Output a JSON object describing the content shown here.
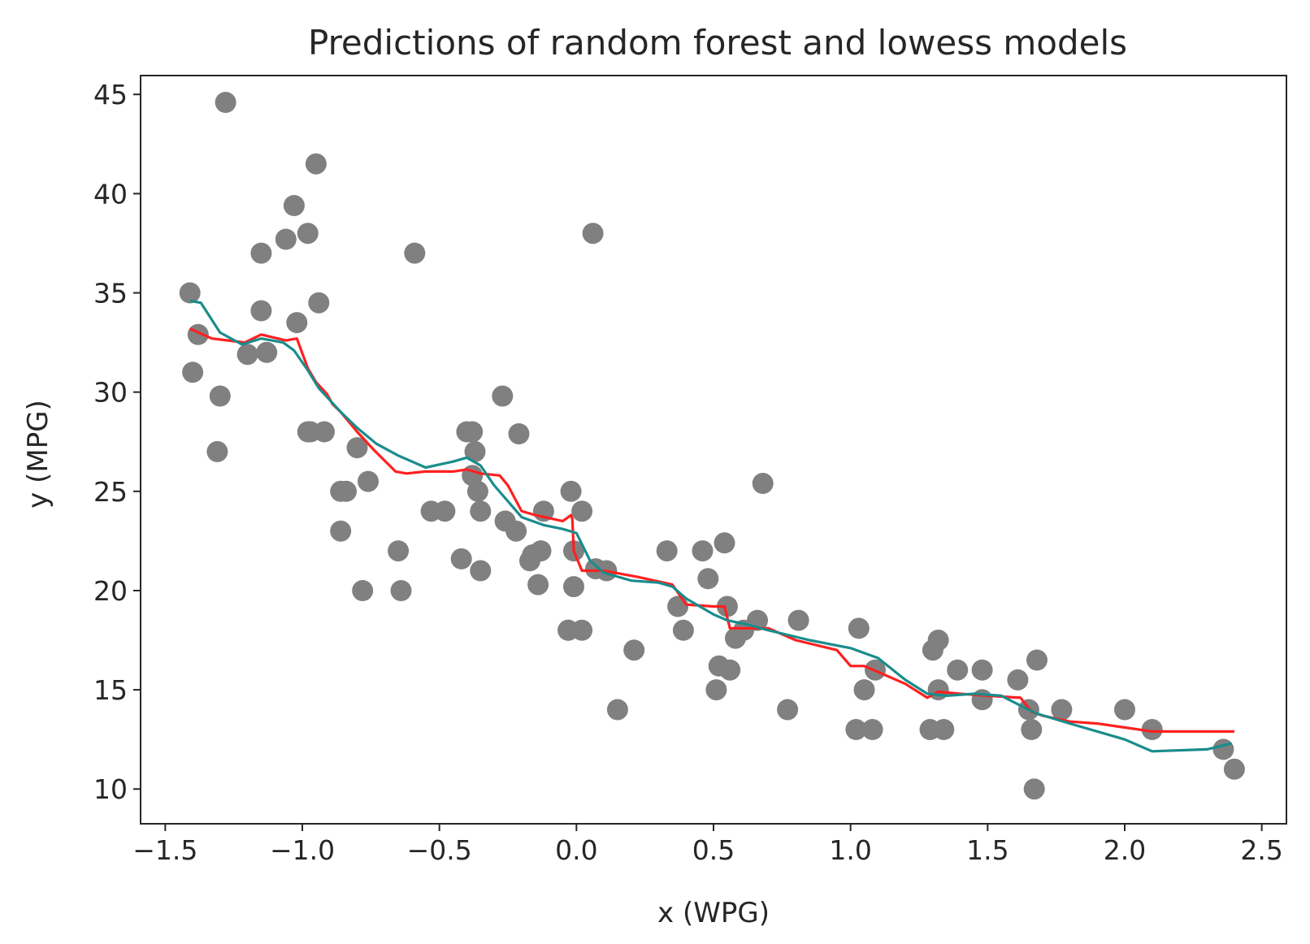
{
  "chart_data": {
    "type": "scatter",
    "title": "Predictions of random forest and lowess models",
    "xlabel": "x (WPG)",
    "ylabel": "y (MPG)",
    "xlim": [
      -1.59,
      2.59
    ],
    "ylim": [
      8.25,
      45.95
    ],
    "xticks": [
      -1.5,
      -1.0,
      -0.5,
      0.0,
      0.5,
      1.0,
      1.5,
      2.0,
      2.5
    ],
    "xtick_labels": [
      "−1.5",
      "−1.0",
      "−0.5",
      "0.0",
      "0.5",
      "1.0",
      "1.5",
      "2.0",
      "2.5"
    ],
    "yticks": [
      10,
      15,
      20,
      25,
      30,
      35,
      40,
      45
    ],
    "ytick_labels": [
      "10",
      "15",
      "20",
      "25",
      "30",
      "35",
      "40",
      "45"
    ],
    "grid": false,
    "colors": {
      "points": "#808080",
      "random_forest": "#ff2020",
      "lowess": "#1a8c8c",
      "frame": "#262626"
    },
    "scatter": {
      "x": [
        -1.41,
        -1.38,
        -1.4,
        -1.3,
        -1.31,
        -1.28,
        -1.2,
        -1.15,
        -1.15,
        -1.13,
        -1.06,
        -1.03,
        -1.02,
        -0.98,
        -0.98,
        -0.95,
        -0.94,
        -0.97,
        -0.92,
        -0.86,
        -0.84,
        -0.86,
        -0.78,
        -0.76,
        -0.8,
        -0.65,
        -0.64,
        -0.59,
        -0.53,
        -0.48,
        -0.4,
        -0.38,
        -0.37,
        -0.38,
        -0.35,
        -0.35,
        -0.42,
        -0.36,
        -0.27,
        -0.26,
        -0.22,
        -0.21,
        -0.17,
        -0.16,
        -0.13,
        -0.14,
        -0.12,
        -0.03,
        -0.01,
        -0.02,
        -0.01,
        0.02,
        -0.03,
        0.02,
        0.06,
        0.07,
        0.11,
        0.15,
        0.21,
        0.33,
        0.37,
        0.39,
        0.46,
        0.48,
        0.51,
        0.52,
        0.54,
        0.55,
        0.56,
        0.58,
        0.61,
        0.66,
        0.68,
        0.77,
        0.81,
        1.02,
        1.03,
        1.05,
        1.08,
        1.09,
        1.29,
        1.3,
        1.32,
        1.32,
        1.34,
        1.39,
        1.48,
        1.48,
        1.61,
        1.65,
        1.66,
        1.67,
        1.68,
        1.77,
        2.0,
        2.1,
        2.36,
        2.4
      ],
      "y": [
        35.0,
        32.9,
        31.0,
        29.8,
        27.0,
        44.6,
        31.9,
        37.0,
        34.1,
        32.0,
        37.7,
        39.4,
        33.5,
        38.0,
        28.0,
        41.5,
        34.5,
        28.0,
        28.0,
        25.0,
        25.0,
        23.0,
        20.0,
        25.5,
        27.2,
        22.0,
        20.0,
        37.0,
        24.0,
        24.0,
        28.0,
        28.0,
        27.0,
        25.8,
        24.0,
        21.0,
        21.6,
        25.0,
        29.8,
        23.5,
        23.0,
        27.9,
        21.5,
        21.8,
        22.0,
        20.3,
        24.0,
        18.0,
        22.0,
        25.0,
        20.2,
        18.0,
        18.0,
        24.0,
        38.0,
        21.1,
        21.0,
        14.0,
        17.0,
        22.0,
        19.2,
        18.0,
        22.0,
        20.6,
        15.0,
        16.2,
        22.4,
        19.2,
        16.0,
        17.6,
        18.0,
        18.5,
        25.4,
        14.0,
        18.5,
        13.0,
        18.1,
        15.0,
        13.0,
        16.0,
        13.0,
        17.0,
        15.0,
        17.5,
        13.0,
        16.0,
        16.0,
        14.5,
        15.5,
        14.0,
        13.0,
        10.0,
        16.5,
        14.0,
        14.0,
        13.0,
        12.0,
        11.0
      ]
    },
    "series": [
      {
        "x": [
          -1.41,
          -1.33,
          -1.27,
          -1.21,
          -1.15,
          -1.06,
          -1.02,
          -0.98,
          -0.95,
          -0.91,
          -0.89,
          -0.86,
          -0.8,
          -0.74,
          -0.66,
          -0.62,
          -0.55,
          -0.45,
          -0.4,
          -0.35,
          -0.28,
          -0.25,
          -0.2,
          -0.15,
          -0.05,
          -0.02,
          -0.015,
          -0.01,
          0.02,
          0.1,
          0.22,
          0.35,
          0.4,
          0.5,
          0.54,
          0.56,
          0.7,
          0.8,
          0.95,
          1.0,
          1.05,
          1.1,
          1.2,
          1.28,
          1.32,
          1.4,
          1.5,
          1.62,
          1.66,
          1.7,
          1.8,
          1.9,
          2.0,
          2.1,
          2.4
        ],
        "y": [
          33.2,
          32.7,
          32.6,
          32.5,
          32.9,
          32.6,
          32.7,
          31.2,
          30.5,
          29.9,
          29.4,
          29.0,
          28.0,
          27.1,
          26.0,
          25.9,
          26.0,
          26.0,
          26.1,
          25.9,
          25.8,
          25.3,
          24.0,
          23.8,
          23.5,
          23.8,
          23.6,
          22.0,
          21.0,
          21.0,
          20.7,
          20.3,
          19.3,
          19.2,
          19.2,
          18.1,
          18.1,
          17.5,
          17.0,
          16.2,
          16.2,
          15.9,
          15.3,
          14.6,
          14.9,
          14.8,
          14.7,
          14.6,
          13.9,
          13.7,
          13.4,
          13.3,
          13.1,
          12.9,
          12.9
        ]
      },
      {
        "x": [
          -1.41,
          -1.37,
          -1.3,
          -1.22,
          -1.15,
          -1.07,
          -1.03,
          -0.98,
          -0.94,
          -0.9,
          -0.86,
          -0.8,
          -0.73,
          -0.65,
          -0.55,
          -0.45,
          -0.4,
          -0.35,
          -0.3,
          -0.25,
          -0.2,
          -0.12,
          -0.05,
          0.0,
          0.05,
          0.1,
          0.2,
          0.3,
          0.35,
          0.4,
          0.5,
          0.55,
          0.62,
          0.7,
          0.85,
          1.0,
          1.1,
          1.2,
          1.28,
          1.35,
          1.45,
          1.55,
          1.62,
          1.68,
          1.8,
          2.0,
          2.1,
          2.3,
          2.39
        ],
        "y": [
          34.6,
          34.5,
          33.0,
          32.4,
          32.7,
          32.5,
          32.1,
          31.1,
          30.2,
          29.6,
          29.0,
          28.2,
          27.4,
          26.8,
          26.2,
          26.5,
          26.7,
          26.3,
          25.3,
          24.5,
          23.7,
          23.3,
          23.1,
          22.9,
          21.5,
          20.9,
          20.5,
          20.4,
          20.2,
          19.6,
          18.8,
          18.5,
          18.3,
          18.0,
          17.5,
          17.1,
          16.6,
          15.5,
          14.8,
          14.7,
          14.8,
          14.7,
          14.2,
          13.8,
          13.3,
          12.5,
          11.9,
          12.0,
          12.3
        ]
      }
    ]
  }
}
